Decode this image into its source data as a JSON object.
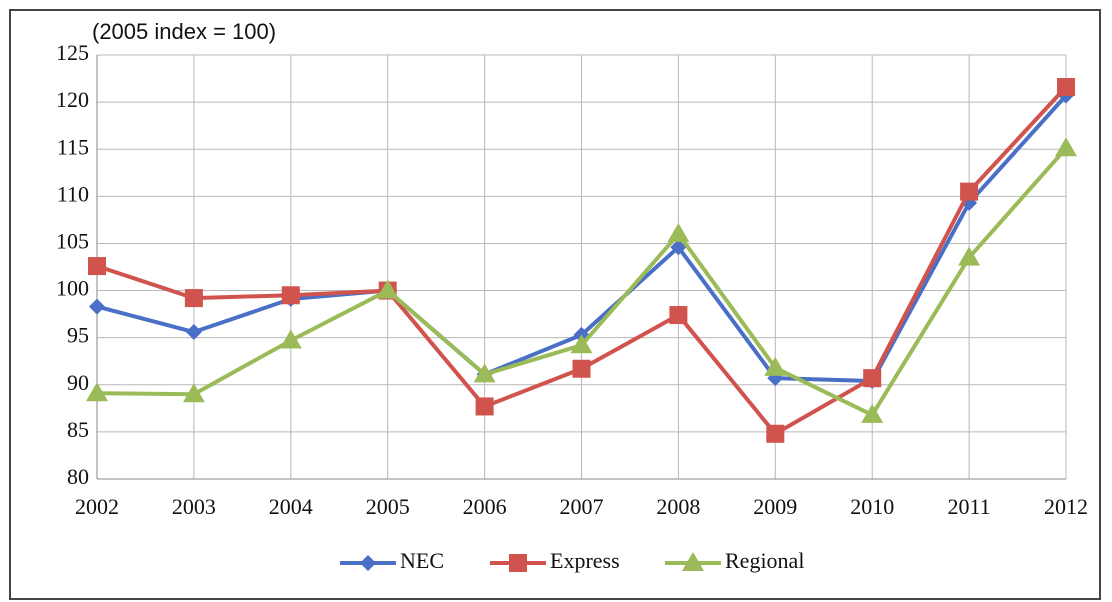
{
  "chart_data": {
    "type": "line",
    "annotation": "(2005 index = 100)",
    "categories": [
      "2002",
      "2003",
      "2004",
      "2005",
      "2006",
      "2007",
      "2008",
      "2009",
      "2010",
      "2011",
      "2012"
    ],
    "series": [
      {
        "name": "NEC",
        "color": "#4a6fc7",
        "marker": "diamond",
        "values": [
          98.3,
          95.6,
          99.1,
          100,
          91.1,
          95.3,
          104.6,
          90.7,
          90.4,
          109.3,
          120.7
        ]
      },
      {
        "name": "Express",
        "color": "#d0534d",
        "marker": "square",
        "values": [
          102.6,
          99.2,
          99.5,
          100,
          87.7,
          91.7,
          97.4,
          84.8,
          90.7,
          110.5,
          121.6
        ]
      },
      {
        "name": "Regional",
        "color": "#9bbb59",
        "marker": "triangle",
        "values": [
          89.1,
          89.0,
          94.7,
          100,
          91.1,
          94.2,
          106.0,
          91.8,
          86.8,
          103.5,
          115.1
        ]
      }
    ],
    "ylim": [
      80,
      125
    ],
    "yticks": [
      80,
      85,
      90,
      95,
      100,
      105,
      110,
      115,
      120,
      125
    ],
    "grid": true,
    "legend": "bottom"
  }
}
